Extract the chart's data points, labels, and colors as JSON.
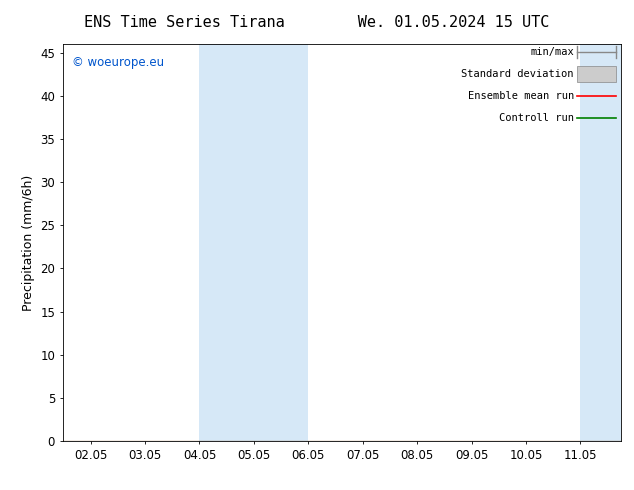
{
  "title_left": "ENS Time Series Tirana",
  "title_right": "We. 01.05.2024 15 UTC",
  "ylabel": "Precipitation (mm/6h)",
  "watermark": "© woeurope.eu",
  "watermark_color": "#0055cc",
  "xlim_start": 1.55,
  "xlim_end": 11.8,
  "ylim": [
    0,
    46
  ],
  "yticks": [
    0,
    5,
    10,
    15,
    20,
    25,
    30,
    35,
    40,
    45
  ],
  "xticks": [
    2.05,
    3.05,
    4.05,
    5.05,
    6.05,
    7.05,
    8.05,
    9.05,
    10.05,
    11.05
  ],
  "xtick_labels": [
    "02.05",
    "03.05",
    "04.05",
    "05.05",
    "06.05",
    "07.05",
    "08.05",
    "09.05",
    "10.05",
    "11.05"
  ],
  "blue_sub_bands": [
    [
      4.05,
      5.05
    ],
    [
      5.05,
      6.05
    ],
    [
      11.05,
      11.55
    ],
    [
      11.55,
      12.05
    ]
  ],
  "band_color": "#d6e8f7",
  "legend_entries": [
    {
      "label": "min/max",
      "color": "#aaaaaa"
    },
    {
      "label": "Standard deviation",
      "color": "#cccccc"
    },
    {
      "label": "Ensemble mean run",
      "color": "#ff0000"
    },
    {
      "label": "Controll run",
      "color": "#008000"
    }
  ],
  "background_color": "#ffffff",
  "title_fontsize": 11,
  "tick_fontsize": 8.5,
  "ylabel_fontsize": 9
}
